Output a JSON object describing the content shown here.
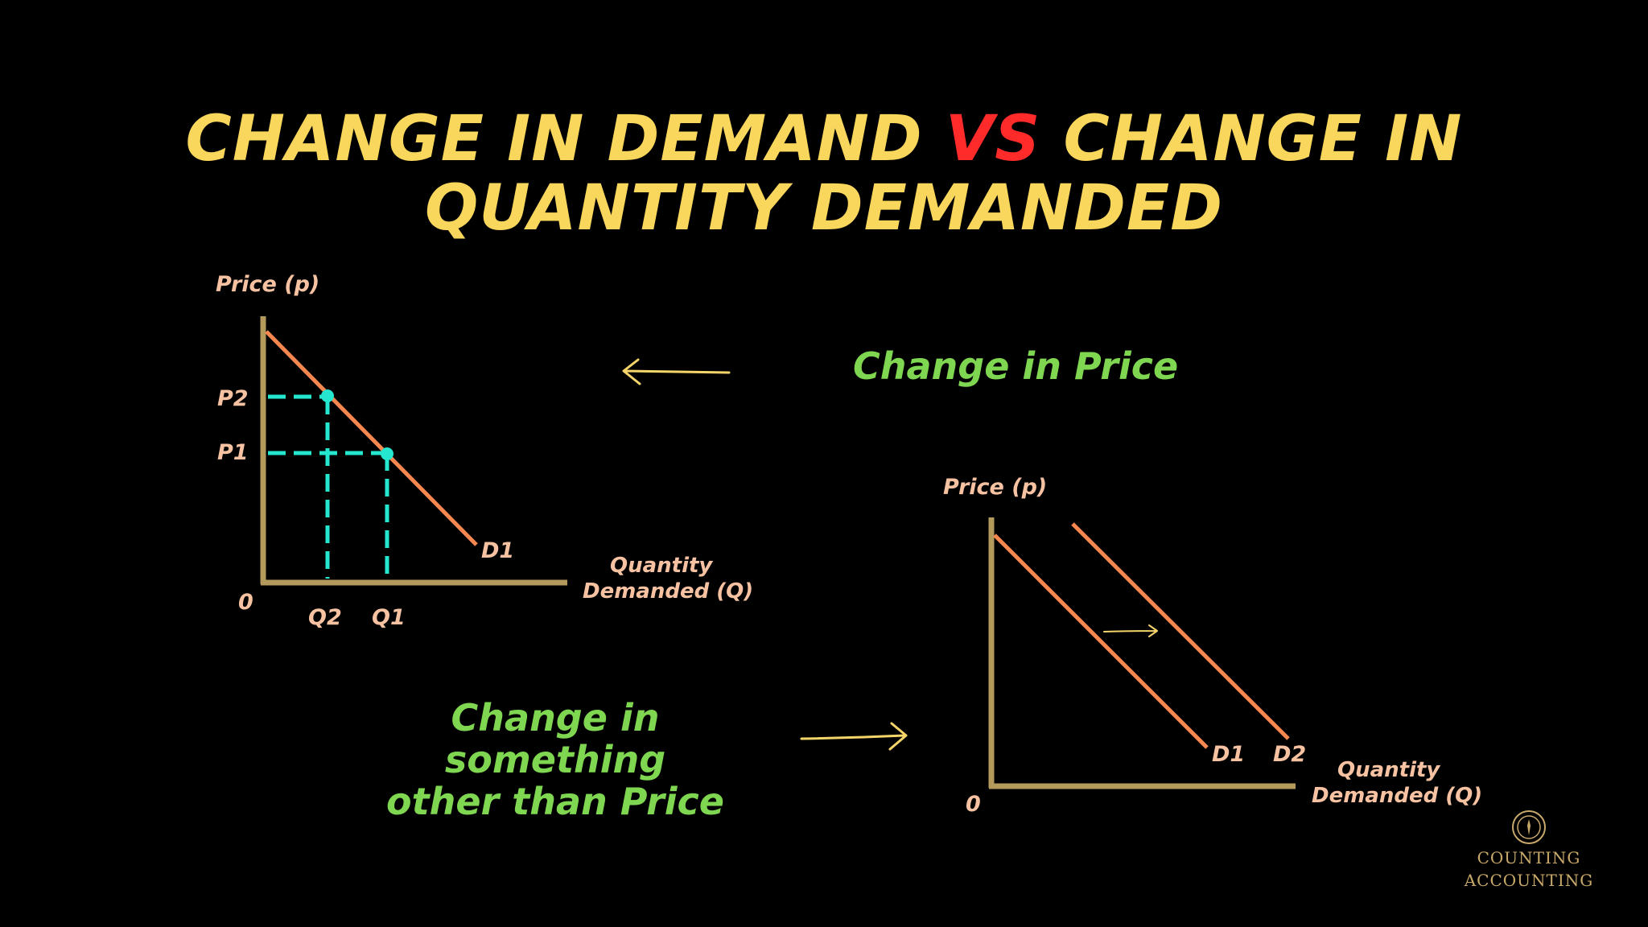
{
  "title": {
    "line1_part1": "CHANGE IN DEMAND",
    "line1_vs": "VS",
    "line1_part2": "CHANGE IN",
    "line2": "QUANTITY DEMANDED"
  },
  "left_graph": {
    "y_axis_label": "Price (p)",
    "x_axis_label_line1": "Quantity",
    "x_axis_label_line2": "Demanded (Q)",
    "origin": "0",
    "p2": "P2",
    "p1": "P1",
    "q2": "Q2",
    "q1": "Q1",
    "curve_label": "D1"
  },
  "right_graph": {
    "y_axis_label": "Price (p)",
    "x_axis_label_line1": "Quantity",
    "x_axis_label_line2": "Demanded (Q)",
    "origin": "0",
    "curve1_label": "D1",
    "curve2_label": "D2"
  },
  "annotations": {
    "change_in_price": "Change in Price",
    "other_line1": "Change in something",
    "other_line2": "other than Price"
  },
  "brand": {
    "line1": "COUNTING",
    "line2": "ACCOUNTING"
  },
  "colors": {
    "title": "#f9d65c",
    "vs": "#ff2a2a",
    "axis": "#b39a5c",
    "curve": "#f5874f",
    "guide": "#25e6cf",
    "label": "#f6c2a2",
    "annotation": "#7fd650",
    "arrow": "#f5d56a"
  }
}
